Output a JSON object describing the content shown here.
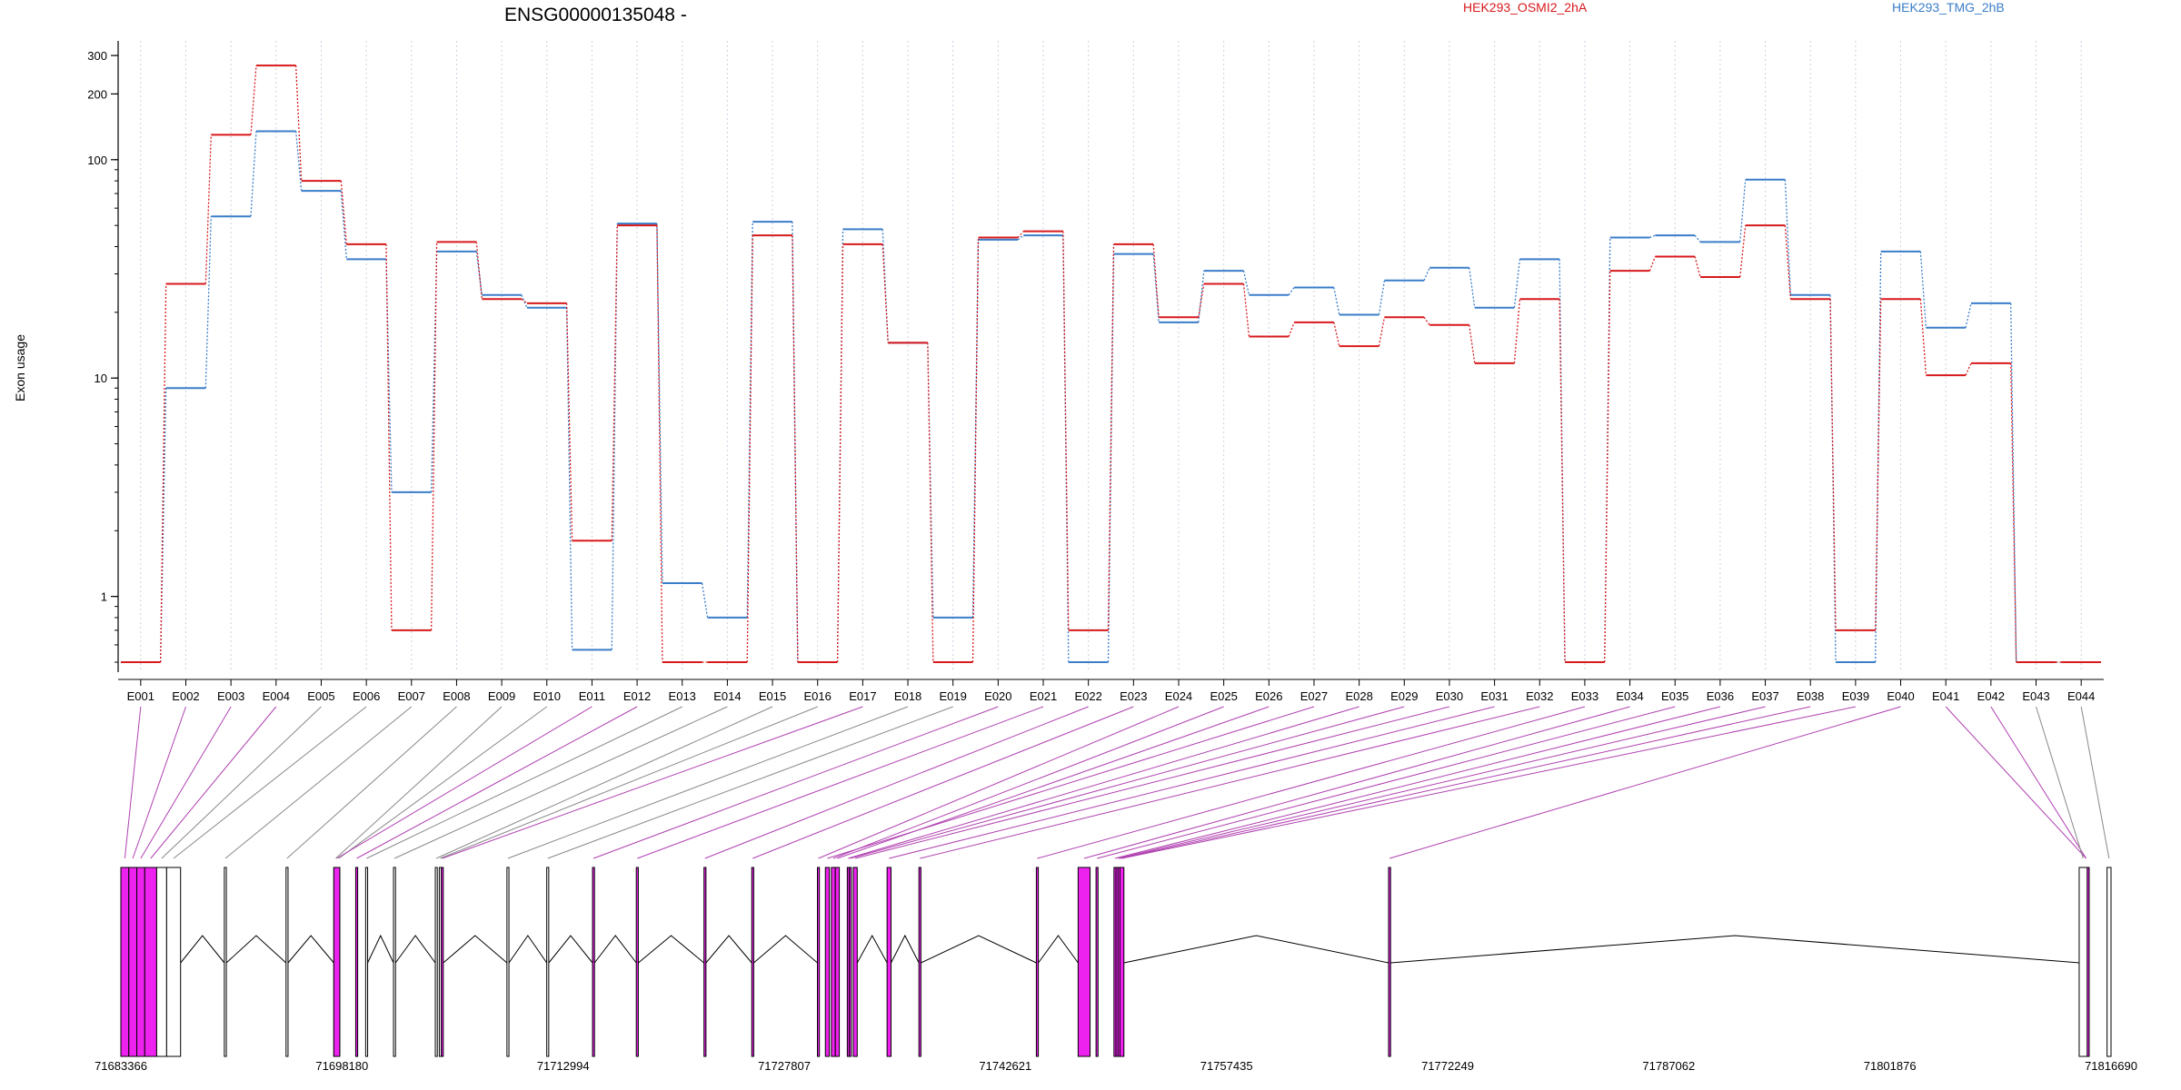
{
  "chart_data": {
    "type": "line",
    "title": "ENSG00000135048 -",
    "ylabel": "Exon usage",
    "xlabel": "",
    "yscale": "log",
    "ylim": [
      0.45,
      350
    ],
    "yticks": [
      1,
      10,
      100,
      200,
      300
    ],
    "grid": "vertical dotted",
    "legend_position": "top",
    "categories": [
      "E001",
      "E002",
      "E003",
      "E004",
      "E005",
      "E006",
      "E007",
      "E008",
      "E009",
      "E010",
      "E011",
      "E012",
      "E013",
      "E014",
      "E015",
      "E016",
      "E017",
      "E018",
      "E019",
      "E020",
      "E021",
      "E022",
      "E023",
      "E024",
      "E025",
      "E026",
      "E027",
      "E028",
      "E029",
      "E030",
      "E031",
      "E032",
      "E033",
      "E034",
      "E035",
      "E036",
      "E037",
      "E038",
      "E039",
      "E040",
      "E041",
      "E042",
      "E043",
      "E044"
    ],
    "series": [
      {
        "name": "HEK293_OSMI2_2hA",
        "color": "#d7191c",
        "values": [
          0.5,
          27,
          130,
          270,
          80,
          41,
          0.7,
          42,
          23,
          22,
          1.8,
          50,
          0.5,
          0.5,
          45,
          0.5,
          41,
          14.5,
          0.5,
          44,
          47,
          0.7,
          41,
          19,
          27,
          15.5,
          18,
          14,
          19,
          17.5,
          11.7,
          23,
          0.5,
          31,
          36,
          29,
          50,
          23,
          0.7,
          23,
          10.3,
          11.7,
          0.5,
          0.5
        ]
      },
      {
        "name": "HEK293_TMG_2hB",
        "color": "#3a7dc9",
        "values": [
          0.5,
          9,
          55,
          135,
          72,
          35,
          3,
          38,
          24,
          21,
          0.57,
          51,
          1.15,
          0.8,
          52,
          0.5,
          48,
          14.5,
          0.8,
          43,
          45,
          0.5,
          37,
          18,
          31,
          24,
          26,
          19.5,
          28,
          32,
          21,
          35,
          0.5,
          44,
          45,
          42,
          81,
          24,
          0.5,
          38,
          17,
          22,
          0.5,
          0.5
        ]
      }
    ],
    "gene_model": {
      "coordinate_ticks": [
        "71683366",
        "71698180",
        "71712994",
        "71727807",
        "71742621",
        "71757435",
        "71772249",
        "71787062",
        "71801876",
        "71816690"
      ],
      "highlighted_exon_color": "#ee22ee",
      "highlighted_exons": [
        "E001",
        "E002",
        "E003",
        "E004",
        "E011",
        "E012",
        "E017",
        "E020",
        "E021",
        "E022",
        "E023",
        "E024",
        "E025",
        "E026",
        "E027",
        "E028",
        "E029",
        "E030",
        "E031",
        "E032",
        "E033",
        "E034",
        "E035",
        "E036",
        "E037",
        "E038",
        "E039",
        "E040",
        "E041",
        "E042"
      ]
    }
  }
}
